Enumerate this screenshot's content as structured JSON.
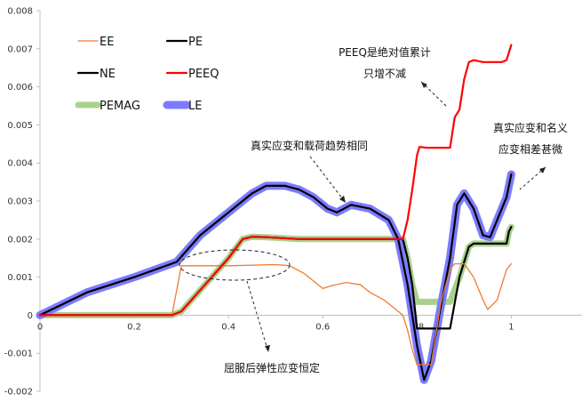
{
  "chart_data": {
    "type": "line",
    "title": "",
    "xlabel": "",
    "ylabel": "",
    "xlim": [
      0,
      1.15
    ],
    "ylim": [
      -0.002,
      0.008
    ],
    "x_ticks": [
      "0",
      "0.2",
      "0.4",
      "0.6",
      "0.8",
      "1"
    ],
    "x_tick_values": [
      0,
      0.2,
      0.4,
      0.6,
      0.8,
      1
    ],
    "y_ticks": [
      "-0.002",
      "-0.001",
      "0",
      "0.001",
      "0.002",
      "0.003",
      "0.004",
      "0.005",
      "0.006",
      "0.007",
      "0.008"
    ],
    "y_tick_values": [
      -0.002,
      -0.001,
      0,
      0.001,
      0.002,
      0.003,
      0.004,
      0.005,
      0.006,
      0.007,
      0.008
    ],
    "grid": false,
    "legend_position": "top-left",
    "series": [
      {
        "name": "PEMAG",
        "color": "#a9d18e",
        "style": "thick",
        "points": [
          [
            0,
            0
          ],
          [
            0.28,
            0
          ],
          [
            0.3,
            0.0001
          ],
          [
            0.35,
            0.0008
          ],
          [
            0.4,
            0.0015
          ],
          [
            0.43,
            0.002
          ],
          [
            0.45,
            0.00206
          ],
          [
            0.48,
            0.00205
          ],
          [
            0.55,
            0.002
          ],
          [
            0.7,
            0.002
          ],
          [
            0.77,
            0.002
          ],
          [
            0.78,
            0.0015
          ],
          [
            0.79,
            0.0008
          ],
          [
            0.8,
            0.00035
          ],
          [
            0.87,
            0.00035
          ],
          [
            0.89,
            0.001
          ],
          [
            0.91,
            0.0018
          ],
          [
            0.92,
            0.00188
          ],
          [
            0.99,
            0.00188
          ],
          [
            0.995,
            0.0022
          ],
          [
            1.0,
            0.00232
          ]
        ]
      },
      {
        "name": "LE",
        "color": "#7b7bff",
        "style": "thick",
        "points": [
          [
            0,
            0
          ],
          [
            0.1,
            0.0006
          ],
          [
            0.2,
            0.001
          ],
          [
            0.29,
            0.0014
          ],
          [
            0.34,
            0.0021
          ],
          [
            0.4,
            0.0027
          ],
          [
            0.45,
            0.0032
          ],
          [
            0.48,
            0.0034
          ],
          [
            0.52,
            0.0034
          ],
          [
            0.55,
            0.0033
          ],
          [
            0.58,
            0.0031
          ],
          [
            0.61,
            0.0028
          ],
          [
            0.63,
            0.0027
          ],
          [
            0.66,
            0.0029
          ],
          [
            0.7,
            0.0028
          ],
          [
            0.74,
            0.0025
          ],
          [
            0.76,
            0.002
          ],
          [
            0.78,
            0.0008
          ],
          [
            0.8,
            -0.0008
          ],
          [
            0.815,
            -0.0017
          ],
          [
            0.83,
            -0.0012
          ],
          [
            0.85,
            0.0002
          ],
          [
            0.87,
            0.0015
          ],
          [
            0.885,
            0.0029
          ],
          [
            0.9,
            0.0032
          ],
          [
            0.92,
            0.0028
          ],
          [
            0.94,
            0.0021
          ],
          [
            0.955,
            0.00205
          ],
          [
            0.97,
            0.0025
          ],
          [
            0.99,
            0.0031
          ],
          [
            1.0,
            0.0037
          ]
        ]
      },
      {
        "name": "NE",
        "color": "#000000",
        "style": "line",
        "points": [
          [
            0,
            0
          ],
          [
            0.1,
            0.0006
          ],
          [
            0.2,
            0.001
          ],
          [
            0.29,
            0.0014
          ],
          [
            0.34,
            0.0021
          ],
          [
            0.4,
            0.0027
          ],
          [
            0.45,
            0.0032
          ],
          [
            0.48,
            0.0034
          ],
          [
            0.52,
            0.0034
          ],
          [
            0.55,
            0.0033
          ],
          [
            0.58,
            0.0031
          ],
          [
            0.61,
            0.0028
          ],
          [
            0.63,
            0.0027
          ],
          [
            0.66,
            0.0029
          ],
          [
            0.7,
            0.0028
          ],
          [
            0.74,
            0.0025
          ],
          [
            0.76,
            0.002
          ],
          [
            0.78,
            0.0008
          ],
          [
            0.8,
            -0.0008
          ],
          [
            0.815,
            -0.0017
          ],
          [
            0.83,
            -0.0012
          ],
          [
            0.85,
            0.0002
          ],
          [
            0.87,
            0.0015
          ],
          [
            0.885,
            0.0029
          ],
          [
            0.9,
            0.0032
          ],
          [
            0.92,
            0.0028
          ],
          [
            0.94,
            0.0021
          ],
          [
            0.955,
            0.00205
          ],
          [
            0.97,
            0.0025
          ],
          [
            0.99,
            0.0031
          ],
          [
            1.0,
            0.0037
          ]
        ]
      },
      {
        "name": "PE",
        "color": "#000000",
        "style": "line",
        "points": [
          [
            0,
            0
          ],
          [
            0.28,
            0
          ],
          [
            0.3,
            0.0001
          ],
          [
            0.35,
            0.0008
          ],
          [
            0.4,
            0.0015
          ],
          [
            0.43,
            0.002
          ],
          [
            0.45,
            0.00206
          ],
          [
            0.48,
            0.00205
          ],
          [
            0.55,
            0.002
          ],
          [
            0.7,
            0.002
          ],
          [
            0.77,
            0.002
          ],
          [
            0.78,
            0.0015
          ],
          [
            0.79,
            0.0008
          ],
          [
            0.8,
            -0.00035
          ],
          [
            0.87,
            -0.00035
          ],
          [
            0.89,
            0.001
          ],
          [
            0.91,
            0.0018
          ],
          [
            0.92,
            0.00188
          ],
          [
            0.99,
            0.00188
          ],
          [
            0.995,
            0.0022
          ],
          [
            1.0,
            0.00232
          ]
        ]
      },
      {
        "name": "EE",
        "color": "#ed7d31",
        "style": "thin",
        "points": [
          [
            0,
            0
          ],
          [
            0.28,
            0
          ],
          [
            0.3,
            0.0013
          ],
          [
            0.4,
            0.0013
          ],
          [
            0.5,
            0.00133
          ],
          [
            0.53,
            0.0013
          ],
          [
            0.56,
            0.0011
          ],
          [
            0.58,
            0.0009
          ],
          [
            0.6,
            0.0007
          ],
          [
            0.62,
            0.00078
          ],
          [
            0.65,
            0.00086
          ],
          [
            0.68,
            0.0008
          ],
          [
            0.7,
            0.0006
          ],
          [
            0.73,
            0.0004
          ],
          [
            0.75,
            0.0002
          ],
          [
            0.77,
            0.0
          ],
          [
            0.78,
            -0.0004
          ],
          [
            0.79,
            -0.0009
          ],
          [
            0.8,
            -0.0013
          ],
          [
            0.83,
            -0.0013
          ],
          [
            0.85,
            0.0003
          ],
          [
            0.87,
            0.0012
          ],
          [
            0.88,
            0.00135
          ],
          [
            0.9,
            0.00135
          ],
          [
            0.92,
            0.001
          ],
          [
            0.94,
            0.0004
          ],
          [
            0.95,
            0.00015
          ],
          [
            0.97,
            0.0004
          ],
          [
            0.99,
            0.0012
          ],
          [
            1.0,
            0.00135
          ]
        ]
      },
      {
        "name": "PEEQ",
        "color": "#ff0000",
        "style": "line",
        "points": [
          [
            0,
            0
          ],
          [
            0.28,
            0
          ],
          [
            0.3,
            0.0001
          ],
          [
            0.35,
            0.0008
          ],
          [
            0.4,
            0.0015
          ],
          [
            0.43,
            0.002
          ],
          [
            0.45,
            0.00206
          ],
          [
            0.48,
            0.00205
          ],
          [
            0.55,
            0.002
          ],
          [
            0.7,
            0.002
          ],
          [
            0.77,
            0.002
          ],
          [
            0.78,
            0.0025
          ],
          [
            0.79,
            0.0033
          ],
          [
            0.8,
            0.0042
          ],
          [
            0.805,
            0.00442
          ],
          [
            0.82,
            0.0044
          ],
          [
            0.87,
            0.0044
          ],
          [
            0.88,
            0.0052
          ],
          [
            0.89,
            0.0054
          ],
          [
            0.9,
            0.0062
          ],
          [
            0.91,
            0.00665
          ],
          [
            0.92,
            0.0067
          ],
          [
            0.94,
            0.00665
          ],
          [
            0.98,
            0.00665
          ],
          [
            0.99,
            0.0067
          ],
          [
            1.0,
            0.0071
          ]
        ]
      }
    ],
    "legend": [
      {
        "name": "EE",
        "color": "#ed7d31",
        "style": "thin"
      },
      {
        "name": "PE",
        "color": "#000000",
        "style": "line"
      },
      {
        "name": "NE",
        "color": "#000000",
        "style": "line"
      },
      {
        "name": "PEEQ",
        "color": "#ff0000",
        "style": "line"
      },
      {
        "name": "PEMAG",
        "color": "#a9d18e",
        "style": "thick"
      },
      {
        "name": "LE",
        "color": "#7b7bff",
        "style": "thick"
      }
    ],
    "annotations": [
      {
        "lines": [
          "PEEQ是绝对值累计",
          "只增不减"
        ]
      },
      {
        "lines": [
          "真实应变和名义",
          "应变相差甚微"
        ]
      },
      {
        "lines": [
          "真实应变和载荷趋势相同"
        ]
      },
      {
        "lines": [
          "屈服后弹性应变恒定"
        ]
      }
    ]
  }
}
